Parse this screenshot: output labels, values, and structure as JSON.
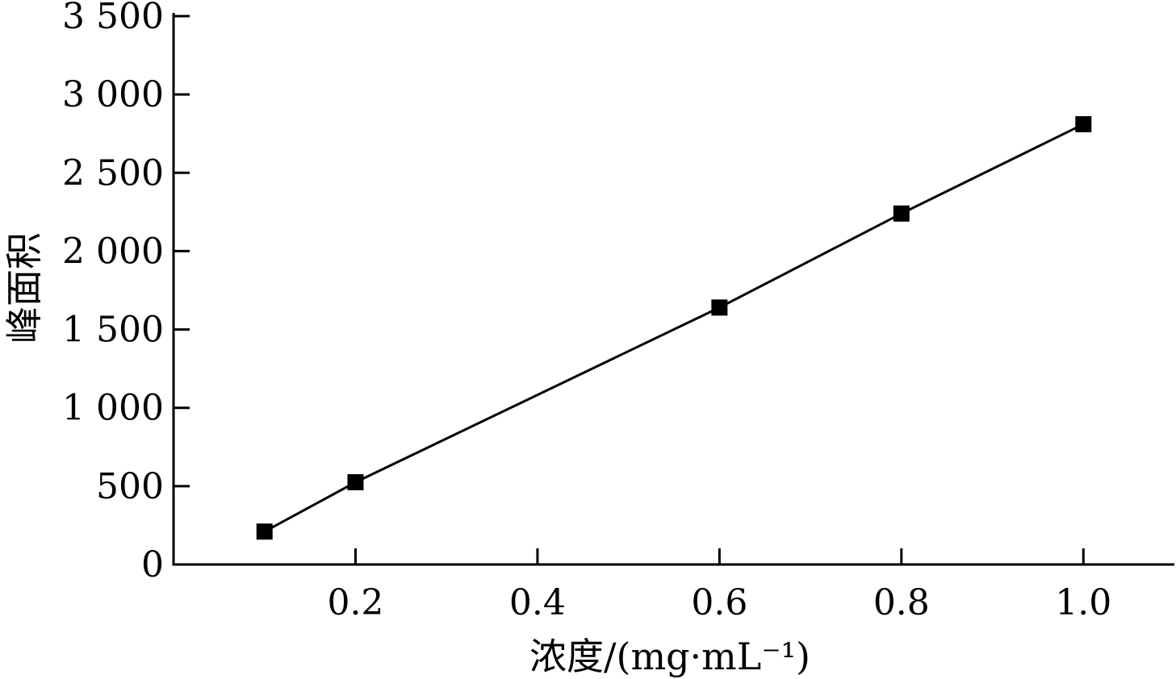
{
  "chart_data": {
    "type": "line",
    "title": "",
    "xlabel": "浓度/(mg·mL⁻¹)",
    "ylabel": "峰面积",
    "xlim": [
      0.0,
      1.1
    ],
    "ylim": [
      0,
      3500
    ],
    "x_ticks": [
      0.2,
      0.4,
      0.6,
      0.8,
      1.0
    ],
    "x_tick_labels": [
      "0.2",
      "0.4",
      "0.6",
      "0.8",
      "1.0"
    ],
    "y_ticks": [
      0,
      500,
      1000,
      1500,
      2000,
      2500,
      3000,
      3500
    ],
    "y_tick_labels": [
      "0",
      "500",
      "1 000",
      "1 500",
      "2 000",
      "2 500",
      "3 000",
      "3 500"
    ],
    "grid": false,
    "legend": "none",
    "series": [
      {
        "x": [
          0.1,
          0.2,
          0.6,
          0.8,
          1.0
        ],
        "y": [
          210,
          525,
          1640,
          2240,
          2810
        ],
        "marker": "square",
        "color": "#000000"
      }
    ]
  }
}
